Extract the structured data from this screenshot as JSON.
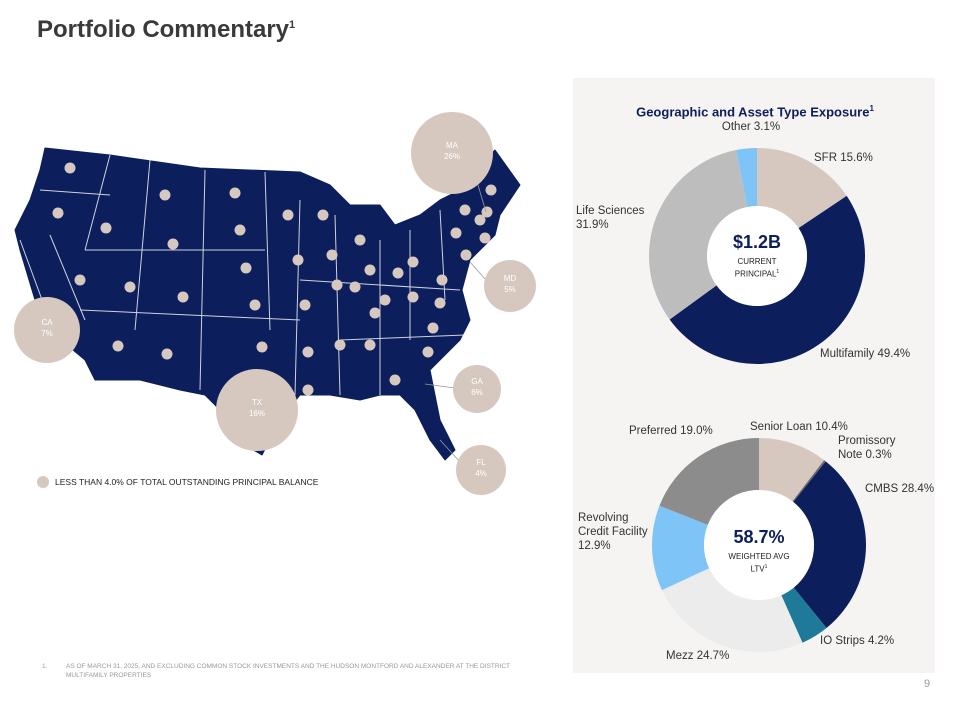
{
  "title": "Portfolio Commentary",
  "title_note": "1",
  "map": {
    "bubbles": [
      {
        "state": "MA",
        "value": 26,
        "value_label": "26%"
      },
      {
        "state": "MD",
        "value": 5,
        "value_label": "5%"
      },
      {
        "state": "CA",
        "value": 7,
        "value_label": "7%"
      },
      {
        "state": "GA",
        "value": 6,
        "value_label": "6%"
      },
      {
        "state": "TX",
        "value": 16,
        "value_label": "16%"
      },
      {
        "state": "FL",
        "value": 4,
        "value_label": "4%"
      }
    ],
    "legend": "LESS THAN 4.0% OF TOTAL OUTSTANDING PRINCIPAL BALANCE"
  },
  "chart_data": [
    {
      "type": "donut",
      "title": "Geographic and Asset Type Exposure",
      "title_note": "1",
      "categories": [
        "SFR",
        "Multifamily",
        "Life Sciences",
        "Other"
      ],
      "values": [
        15.6,
        49.4,
        31.9,
        3.1
      ],
      "value_labels": [
        "15.6%",
        "49.4%",
        "31.9%",
        "3.1%"
      ],
      "colors": [
        "#d6c8bf",
        "#0c1f5c",
        "#bdbdbd",
        "#7fc4f7"
      ],
      "center_value": "$1.2B",
      "center_label": "CURRENT PRINCIPAL",
      "center_note": "1"
    },
    {
      "type": "donut",
      "categories": [
        "Senior Loan",
        "Promissory Note",
        "CMBS",
        "IO Strips",
        "Mezz",
        "Revolving Credit Facility",
        "Preferred"
      ],
      "values": [
        10.4,
        0.3,
        28.4,
        4.2,
        24.7,
        12.9,
        19.0
      ],
      "value_labels": [
        "10.4%",
        "0.3%",
        "28.4%",
        "4.2%",
        "24.7%",
        "12.9%",
        "19.0%"
      ],
      "colors": [
        "#d6c8bf",
        "#6b6b6b",
        "#0c1f5c",
        "#1f7a99",
        "#ececec",
        "#7fc4f7",
        "#8c8c8c"
      ],
      "center_value": "58.7%",
      "center_label": "WEIGHTED AVG LTV",
      "center_note": "1"
    }
  ],
  "footnote": {
    "marker": "1.",
    "text": "AS OF MARCH 31, 2025, AND EXCLUDING COMMON STOCK INVESTMENTS AND THE HUDSON MONTFORD AND ALEXANDER AT THE DISTRICT MULTIFAMILY PROPERTIES"
  },
  "page_number": "9"
}
